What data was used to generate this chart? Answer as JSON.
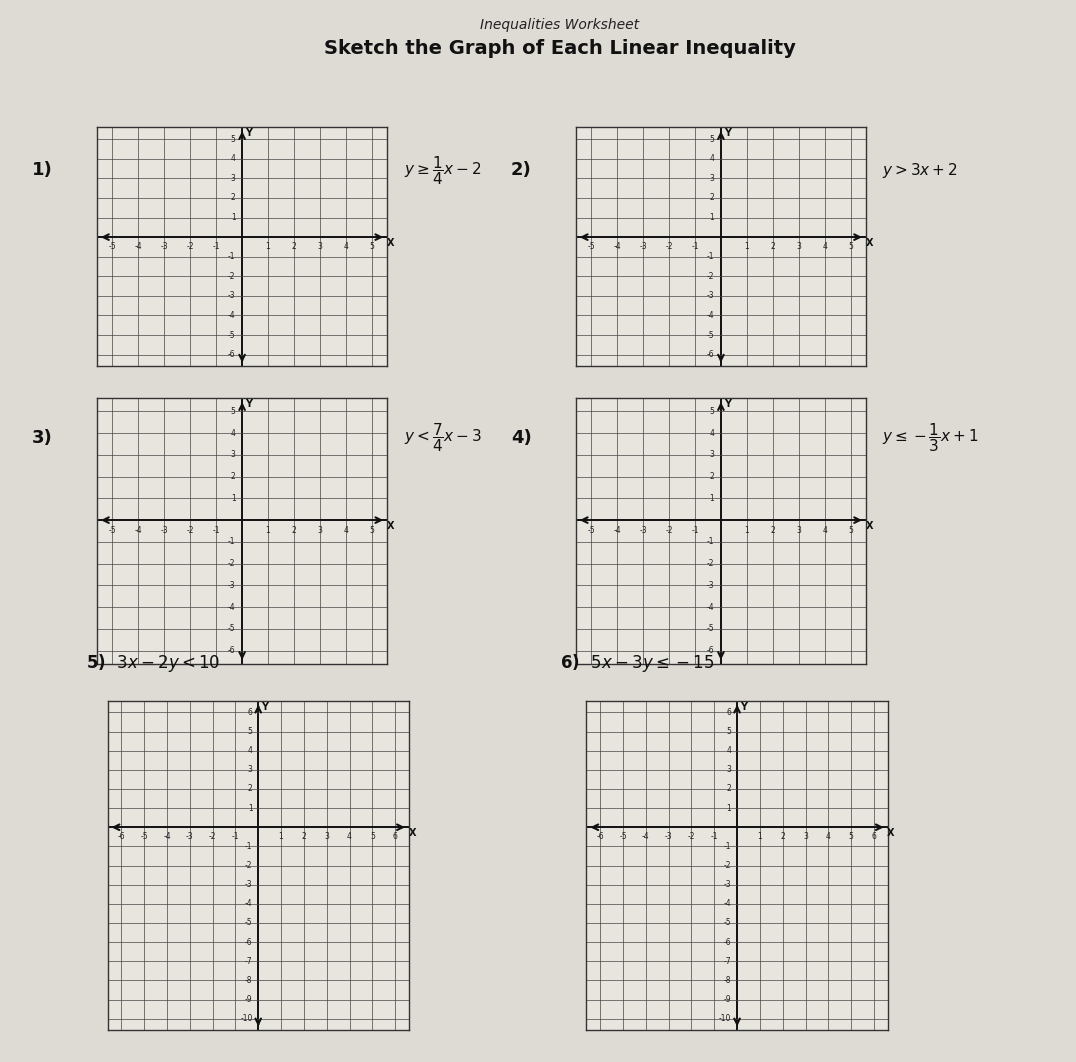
{
  "title_top": "Inequalities Worksheet",
  "title_main": "Sketch the Graph of Each Linear Inequality",
  "bg_color": "#dedad4",
  "grid_bg": "#e8e5de",
  "grid_color": "#444444",
  "axis_color": "#111111",
  "problems_top": [
    {
      "num": "1)",
      "tex": "$y \\geq \\dfrac{1}{4}x - 2$",
      "xrange": [
        -5,
        5
      ],
      "yrange": [
        -6,
        5
      ]
    },
    {
      "num": "2)",
      "tex": "$y > 3x + 2$",
      "xrange": [
        -5,
        5
      ],
      "yrange": [
        -6,
        5
      ]
    },
    {
      "num": "3)",
      "tex": "$y < \\dfrac{7}{4}x - 3$",
      "xrange": [
        -5,
        5
      ],
      "yrange": [
        -6,
        5
      ]
    },
    {
      "num": "4)",
      "tex": "$y \\leq -\\dfrac{1}{3}x + 1$",
      "xrange": [
        -5,
        5
      ],
      "yrange": [
        -6,
        5
      ]
    }
  ],
  "problems_bot": [
    {
      "num": "5)",
      "tex": "$3x - 2y < 10$",
      "xrange": [
        -6,
        6
      ],
      "yrange": [
        -10,
        6
      ]
    },
    {
      "num": "6)",
      "tex": "$5x - 3y \\leq -15$",
      "xrange": [
        -6,
        6
      ],
      "yrange": [
        -10,
        6
      ]
    }
  ]
}
